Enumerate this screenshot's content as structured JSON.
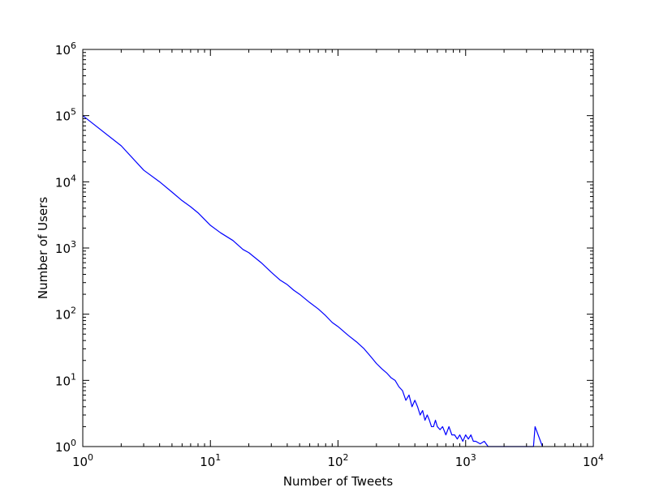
{
  "chart_data": {
    "type": "line",
    "title": "",
    "xlabel": "Number of Tweets",
    "ylabel": "Number of Users",
    "xscale": "log",
    "yscale": "log",
    "xlim": [
      1,
      10000
    ],
    "ylim": [
      1,
      1000000
    ],
    "grid": false,
    "legend": "none",
    "line_color": "#0000ff",
    "x_ticks": [
      {
        "base": "10",
        "exp": "0",
        "value": 1
      },
      {
        "base": "10",
        "exp": "1",
        "value": 10
      },
      {
        "base": "10",
        "exp": "2",
        "value": 100
      },
      {
        "base": "10",
        "exp": "3",
        "value": 1000
      },
      {
        "base": "10",
        "exp": "4",
        "value": 10000
      }
    ],
    "y_ticks": [
      {
        "base": "10",
        "exp": "0",
        "value": 1
      },
      {
        "base": "10",
        "exp": "1",
        "value": 10
      },
      {
        "base": "10",
        "exp": "2",
        "value": 100
      },
      {
        "base": "10",
        "exp": "3",
        "value": 1000
      },
      {
        "base": "10",
        "exp": "4",
        "value": 10000
      },
      {
        "base": "10",
        "exp": "5",
        "value": 100000
      },
      {
        "base": "10",
        "exp": "6",
        "value": 1000000
      }
    ],
    "series": [
      {
        "color": "#0000ff",
        "x": [
          1,
          2,
          3,
          4,
          5,
          6,
          7,
          8,
          10,
          12,
          15,
          18,
          20,
          25,
          30,
          35,
          40,
          45,
          50,
          60,
          70,
          80,
          90,
          100,
          120,
          140,
          160,
          180,
          200,
          220,
          240,
          260,
          280,
          300,
          320,
          340,
          360,
          380,
          400,
          420,
          440,
          460,
          480,
          500,
          520,
          540,
          560,
          580,
          600,
          630,
          660,
          700,
          740,
          780,
          820,
          860,
          900,
          950,
          1000,
          1050,
          1100,
          1150,
          1200,
          1300,
          1400,
          1500,
          1600,
          1750,
          1900,
          2000,
          2100,
          2200,
          3300,
          3400,
          3500,
          4000
        ],
        "y": [
          100000,
          35000,
          15000,
          10000,
          7000,
          5200,
          4200,
          3400,
          2200,
          1700,
          1300,
          950,
          850,
          600,
          430,
          330,
          280,
          230,
          200,
          150,
          120,
          95,
          75,
          65,
          48,
          38,
          30,
          23,
          18,
          15,
          13,
          11,
          10,
          8,
          7,
          5,
          6,
          4,
          5,
          4,
          3,
          3.5,
          2.5,
          3,
          2.5,
          2,
          2,
          2.5,
          2,
          1.8,
          2,
          1.5,
          2,
          1.5,
          1.5,
          1.3,
          1.5,
          1.2,
          1.5,
          1.3,
          1.5,
          1.2,
          1.2,
          1.1,
          1.2,
          1,
          1,
          1,
          1,
          1,
          1,
          1,
          1,
          1,
          2,
          1
        ]
      }
    ]
  }
}
